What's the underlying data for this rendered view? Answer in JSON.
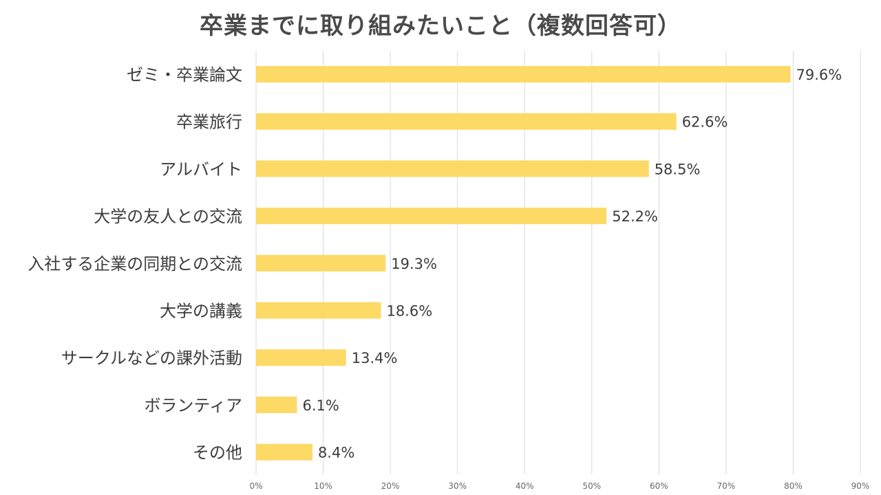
{
  "chart_data": {
    "type": "bar",
    "orientation": "horizontal",
    "title": "卒業までに取り組みたいこと（複数回答可）",
    "categories": [
      "ゼミ・卒業論文",
      "卒業旅行",
      "アルバイト",
      "大学の友人との交流",
      "入社する企業の同期との交流",
      "大学の講義",
      "サークルなどの課外活動",
      "ボランティア",
      "その他"
    ],
    "values": [
      79.6,
      62.6,
      58.5,
      52.2,
      19.3,
      18.6,
      13.4,
      6.1,
      8.4
    ],
    "value_labels": [
      "79.6%",
      "62.6%",
      "58.5%",
      "52.2%",
      "19.3%",
      "18.6%",
      "13.4%",
      "6.1%",
      "8.4%"
    ],
    "xlim": [
      0,
      90
    ],
    "xticks": [
      0,
      10,
      20,
      30,
      40,
      50,
      60,
      70,
      80,
      90
    ],
    "xtick_labels": [
      "0%",
      "10%",
      "20%",
      "30%",
      "40%",
      "50%",
      "60%",
      "70%",
      "80%",
      "90%"
    ],
    "grid": true,
    "legend": "none",
    "colors": {
      "bar": "#FDD966",
      "grid": "#D9D9D9",
      "text": "#3c3c3c"
    }
  }
}
